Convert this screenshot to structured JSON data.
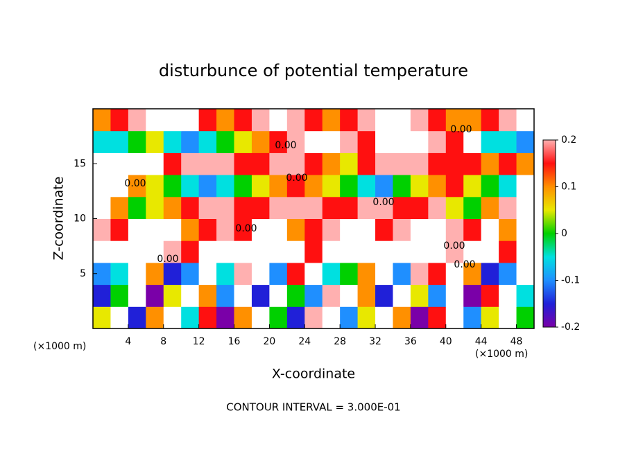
{
  "chart_data": {
    "type": "contour",
    "title": "disturbunce of potential temperature",
    "x_label": "X-coordinate",
    "y_label": "Z-coordinate",
    "x_unit": "(×1000 m)",
    "y_unit": "(×1000 m)",
    "footer": "CONTOUR INTERVAL = 3.000E-01",
    "contour_label": "0.00",
    "xlim": [
      0,
      50
    ],
    "ylim": [
      0,
      20
    ],
    "xticks": [
      4,
      8,
      12,
      16,
      20,
      24,
      28,
      32,
      36,
      40,
      44,
      48
    ],
    "yticks": [
      5,
      10,
      15
    ],
    "clim": [
      -0.2,
      0.2
    ],
    "cticks": [
      -0.2,
      -0.1,
      0,
      0.1,
      0.2
    ],
    "colorscale": [
      "#7a00a8",
      "#2020d8",
      "#1f8fff",
      "#00e0e0",
      "#00d000",
      "#e8e800",
      "#ff9000",
      "#ff1010",
      "#ffb0b0"
    ],
    "over_color": "#ffffff",
    "x": [
      1,
      3,
      5,
      7,
      9,
      11,
      13,
      15,
      17,
      19,
      21,
      23,
      25,
      27,
      29,
      31,
      33,
      35,
      37,
      39,
      41,
      43,
      45,
      47,
      49
    ],
    "y": [
      1,
      3,
      5,
      7,
      9,
      11,
      13,
      15,
      17,
      19
    ],
    "z": [
      [
        0.05,
        0.25,
        -0.15,
        0.1,
        0.25,
        -0.05,
        0.15,
        -0.2,
        0.1,
        0.25,
        0,
        -0.15,
        0.2,
        0.25,
        -0.1,
        0.05,
        0.25,
        0.1,
        -0.2,
        0.15,
        0.25,
        -0.1,
        0.05,
        0.25,
        0
      ],
      [
        -0.15,
        0,
        0.25,
        -0.2,
        0.05,
        0.25,
        0.1,
        -0.1,
        0.25,
        -0.15,
        0.25,
        0,
        -0.1,
        0.2,
        0.25,
        0.1,
        -0.15,
        0.25,
        0.05,
        -0.1,
        0.25,
        -0.2,
        0.15,
        0.25,
        -0.05
      ],
      [
        -0.1,
        -0.05,
        0.25,
        0.1,
        -0.15,
        -0.1,
        0.25,
        -0.05,
        0.2,
        0.25,
        -0.1,
        0.15,
        0.25,
        -0.05,
        0,
        0.1,
        0.25,
        -0.1,
        0.2,
        0.15,
        0.25,
        0.1,
        -0.15,
        -0.1,
        0.25
      ],
      [
        0.25,
        0.25,
        0.25,
        0.25,
        0.2,
        0.15,
        0.25,
        0.25,
        0.25,
        0.25,
        0.25,
        0.25,
        0.15,
        0.25,
        0.25,
        0.25,
        0.25,
        0.25,
        0.25,
        0.25,
        0.2,
        0.25,
        0.25,
        0.15,
        0.25
      ],
      [
        0.2,
        0.15,
        0.25,
        0.25,
        0.25,
        0.1,
        0.15,
        0.2,
        0.15,
        0.25,
        0.25,
        0.1,
        0.15,
        0.2,
        0.25,
        0.25,
        0.15,
        0.2,
        0.25,
        0.25,
        0.2,
        0.15,
        0.25,
        0.1,
        0.25
      ],
      [
        0.25,
        0.1,
        0,
        0.05,
        0.1,
        0.15,
        0.2,
        0.2,
        0.15,
        0.15,
        0.2,
        0.2,
        0.2,
        0.15,
        0.15,
        0.2,
        0.2,
        0.15,
        0.15,
        0.2,
        0.05,
        0,
        0.1,
        0.2,
        0.25
      ],
      [
        0.25,
        0.25,
        0.1,
        0.05,
        0,
        -0.05,
        -0.1,
        -0.05,
        0,
        0.05,
        0.1,
        0.15,
        0.1,
        0.05,
        0,
        -0.05,
        -0.1,
        0,
        0.05,
        0.1,
        0.15,
        0.05,
        0,
        -0.05,
        0.25
      ],
      [
        0.25,
        0.25,
        0.25,
        0.25,
        0.15,
        0.2,
        0.2,
        0.2,
        0.15,
        0.15,
        0.2,
        0.2,
        0.15,
        0.1,
        0.05,
        0.15,
        0.2,
        0.2,
        0.2,
        0.15,
        0.15,
        0.15,
        0.1,
        0.15,
        0.1
      ],
      [
        -0.05,
        -0.05,
        0,
        0.05,
        -0.05,
        -0.1,
        -0.05,
        0,
        0.05,
        0.1,
        0.15,
        0.2,
        0.25,
        0.25,
        0.2,
        0.15,
        0.25,
        0.25,
        0.25,
        0.2,
        0.15,
        0.25,
        -0.05,
        -0.05,
        -0.1
      ],
      [
        0.1,
        0.15,
        0.2,
        0.25,
        0.25,
        0.25,
        0.15,
        0.1,
        0.15,
        0.2,
        0.25,
        0.2,
        0.15,
        0.1,
        0.15,
        0.2,
        0.25,
        0.25,
        0.2,
        0.15,
        0.1,
        0.1,
        0.15,
        0.2,
        0.25
      ]
    ]
  }
}
